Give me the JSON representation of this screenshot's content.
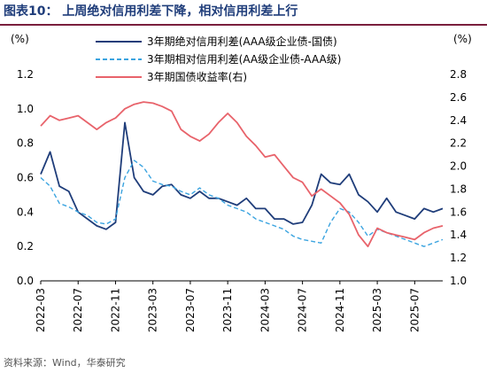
{
  "figure": {
    "title": "图表10：  上周绝对信用利差下降，相对信用利差上行",
    "source": "资料来源：Wind，华泰研究"
  },
  "colors": {
    "abs_spread": "#1f3d7a",
    "rel_spread": "#3ba4e0",
    "yield": "#e8636b",
    "title_rule": "#7a1f3d"
  },
  "chart_data": {
    "type": "line",
    "left_axis_unit": "(%)",
    "right_axis_unit": "(%)",
    "ylim_left": [
      0.0,
      1.2
    ],
    "ylim_right": [
      1.0,
      2.8
    ],
    "left_ticks": [
      "1.2",
      "1.0",
      "0.8",
      "0.6",
      "0.4",
      "0.2",
      "0.0"
    ],
    "right_ticks": [
      "2.8",
      "2.6",
      "2.4",
      "2.2",
      "2.0",
      "1.8",
      "1.6",
      "1.4",
      "1.2",
      "1.0"
    ],
    "x_tick_labels": [
      "2022-03",
      "2022-07",
      "2022-11",
      "2023-03",
      "2023-07",
      "2023-11",
      "2024-03",
      "2024-07",
      "2024-11",
      "2025-03",
      "2025-07"
    ],
    "x_range": [
      "2022-03",
      "2025-10"
    ],
    "grid": false,
    "legend_position": "top",
    "series": [
      {
        "name": "3年期绝对信用利差(AAA级企业债-国债)",
        "axis": "left",
        "style": "solid",
        "x": [
          "2022-03",
          "2022-04",
          "2022-05",
          "2022-06",
          "2022-07",
          "2022-08",
          "2022-09",
          "2022-10",
          "2022-11",
          "2022-12",
          "2023-01",
          "2023-02",
          "2023-03",
          "2023-04",
          "2023-05",
          "2023-06",
          "2023-07",
          "2023-08",
          "2023-09",
          "2023-10",
          "2023-11",
          "2023-12",
          "2024-01",
          "2024-02",
          "2024-03",
          "2024-04",
          "2024-05",
          "2024-06",
          "2024-07",
          "2024-08",
          "2024-09",
          "2024-10",
          "2024-11",
          "2024-12",
          "2025-01",
          "2025-02",
          "2025-03",
          "2025-04",
          "2025-05",
          "2025-06",
          "2025-07",
          "2025-08",
          "2025-09",
          "2025-10"
        ],
        "values": [
          0.62,
          0.75,
          0.55,
          0.52,
          0.4,
          0.36,
          0.32,
          0.3,
          0.34,
          0.92,
          0.6,
          0.52,
          0.5,
          0.55,
          0.56,
          0.5,
          0.48,
          0.52,
          0.48,
          0.48,
          0.46,
          0.44,
          0.48,
          0.42,
          0.42,
          0.36,
          0.36,
          0.33,
          0.34,
          0.44,
          0.62,
          0.57,
          0.56,
          0.62,
          0.5,
          0.46,
          0.4,
          0.48,
          0.4,
          0.38,
          0.36,
          0.42,
          0.4,
          0.42
        ]
      },
      {
        "name": "3年期相对信用利差(AA级企业债-AAA级)",
        "axis": "left",
        "style": "dashed",
        "x": [
          "2022-03",
          "2022-04",
          "2022-05",
          "2022-06",
          "2022-07",
          "2022-08",
          "2022-09",
          "2022-10",
          "2022-11",
          "2022-12",
          "2023-01",
          "2023-02",
          "2023-03",
          "2023-04",
          "2023-05",
          "2023-06",
          "2023-07",
          "2023-08",
          "2023-09",
          "2023-10",
          "2023-11",
          "2023-12",
          "2024-01",
          "2024-02",
          "2024-03",
          "2024-04",
          "2024-05",
          "2024-06",
          "2024-07",
          "2024-08",
          "2024-09",
          "2024-10",
          "2024-11",
          "2024-12",
          "2025-01",
          "2025-02",
          "2025-03",
          "2025-04",
          "2025-05",
          "2025-06",
          "2025-07",
          "2025-08",
          "2025-09",
          "2025-10"
        ],
        "values": [
          0.6,
          0.55,
          0.45,
          0.43,
          0.4,
          0.38,
          0.34,
          0.33,
          0.36,
          0.6,
          0.7,
          0.66,
          0.58,
          0.56,
          0.55,
          0.52,
          0.5,
          0.54,
          0.5,
          0.48,
          0.44,
          0.42,
          0.4,
          0.36,
          0.34,
          0.32,
          0.3,
          0.26,
          0.24,
          0.23,
          0.22,
          0.34,
          0.42,
          0.4,
          0.34,
          0.26,
          0.3,
          0.28,
          0.26,
          0.24,
          0.22,
          0.2,
          0.22,
          0.24
        ]
      },
      {
        "name": "3年期国债收益率(右)",
        "axis": "right",
        "style": "solid",
        "x": [
          "2022-03",
          "2022-04",
          "2022-05",
          "2022-06",
          "2022-07",
          "2022-08",
          "2022-09",
          "2022-10",
          "2022-11",
          "2022-12",
          "2023-01",
          "2023-02",
          "2023-03",
          "2023-04",
          "2023-05",
          "2023-06",
          "2023-07",
          "2023-08",
          "2023-09",
          "2023-10",
          "2023-11",
          "2023-12",
          "2024-01",
          "2024-02",
          "2024-03",
          "2024-04",
          "2024-05",
          "2024-06",
          "2024-07",
          "2024-08",
          "2024-09",
          "2024-10",
          "2024-11",
          "2024-12",
          "2025-01",
          "2025-02",
          "2025-03",
          "2025-04",
          "2025-05",
          "2025-06",
          "2025-07",
          "2025-08",
          "2025-09",
          "2025-10"
        ],
        "values": [
          2.35,
          2.44,
          2.4,
          2.42,
          2.44,
          2.38,
          2.32,
          2.38,
          2.42,
          2.5,
          2.54,
          2.56,
          2.55,
          2.52,
          2.48,
          2.32,
          2.26,
          2.22,
          2.28,
          2.38,
          2.46,
          2.38,
          2.26,
          2.18,
          2.08,
          2.1,
          2.0,
          1.9,
          1.86,
          1.74,
          1.8,
          1.74,
          1.68,
          1.58,
          1.4,
          1.3,
          1.46,
          1.42,
          1.4,
          1.38,
          1.36,
          1.42,
          1.46,
          1.48
        ]
      }
    ]
  }
}
